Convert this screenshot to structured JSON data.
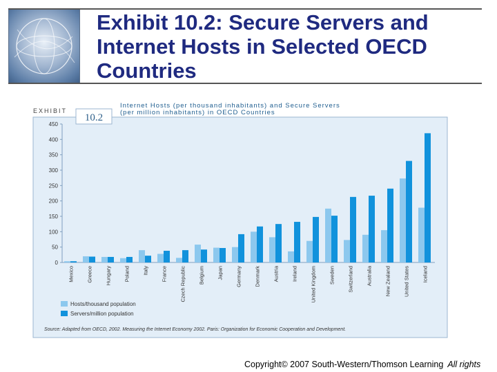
{
  "slide": {
    "title": "Exhibit 10.2: Secure Servers and Internet Hosts in Selected OECD Countries",
    "copyright": "Copyright© 2007 South-Western/Thomson Learning",
    "rights": "All rights"
  },
  "exhibit": {
    "label": "EXHIBIT",
    "number": "10.2"
  },
  "chart_data": {
    "type": "bar",
    "title_line1": "Internet Hosts (per thousand inhabitants) and Secure Servers",
    "title_line2": "(per million inhabitants) in OECD Countries",
    "categories": [
      "Mexico",
      "Greece",
      "Hungary",
      "Poland",
      "Italy",
      "France",
      "Czech Republic",
      "Belgium",
      "Japan",
      "Germany",
      "Denmark",
      "Austria",
      "Ireland",
      "United Kingdom",
      "Sweden",
      "Switzerland",
      "Australia",
      "New Zealand",
      "United States",
      "Iceland"
    ],
    "series": [
      {
        "name": "Hosts/thousand population",
        "color": "#8cc8ee",
        "values": [
          4,
          20,
          18,
          14,
          40,
          28,
          15,
          58,
          48,
          50,
          100,
          82,
          36,
          70,
          175,
          73,
          90,
          105,
          273,
          178
        ]
      },
      {
        "name": "Servers/million population",
        "color": "#1192dc",
        "values": [
          4,
          19,
          18,
          18,
          22,
          38,
          40,
          42,
          47,
          92,
          117,
          125,
          132,
          148,
          152,
          213,
          217,
          240,
          330,
          420
        ]
      }
    ],
    "ylim": [
      0,
      450
    ],
    "yticks": [
      0,
      50,
      100,
      150,
      200,
      250,
      300,
      350,
      400,
      450
    ],
    "grid": false,
    "legend": "bottom-left",
    "source": "Source: Adapted from OECD, 2002. Measuring the Internet Economy 2002. Paris: Organization for Economic Cooperation and Development."
  }
}
